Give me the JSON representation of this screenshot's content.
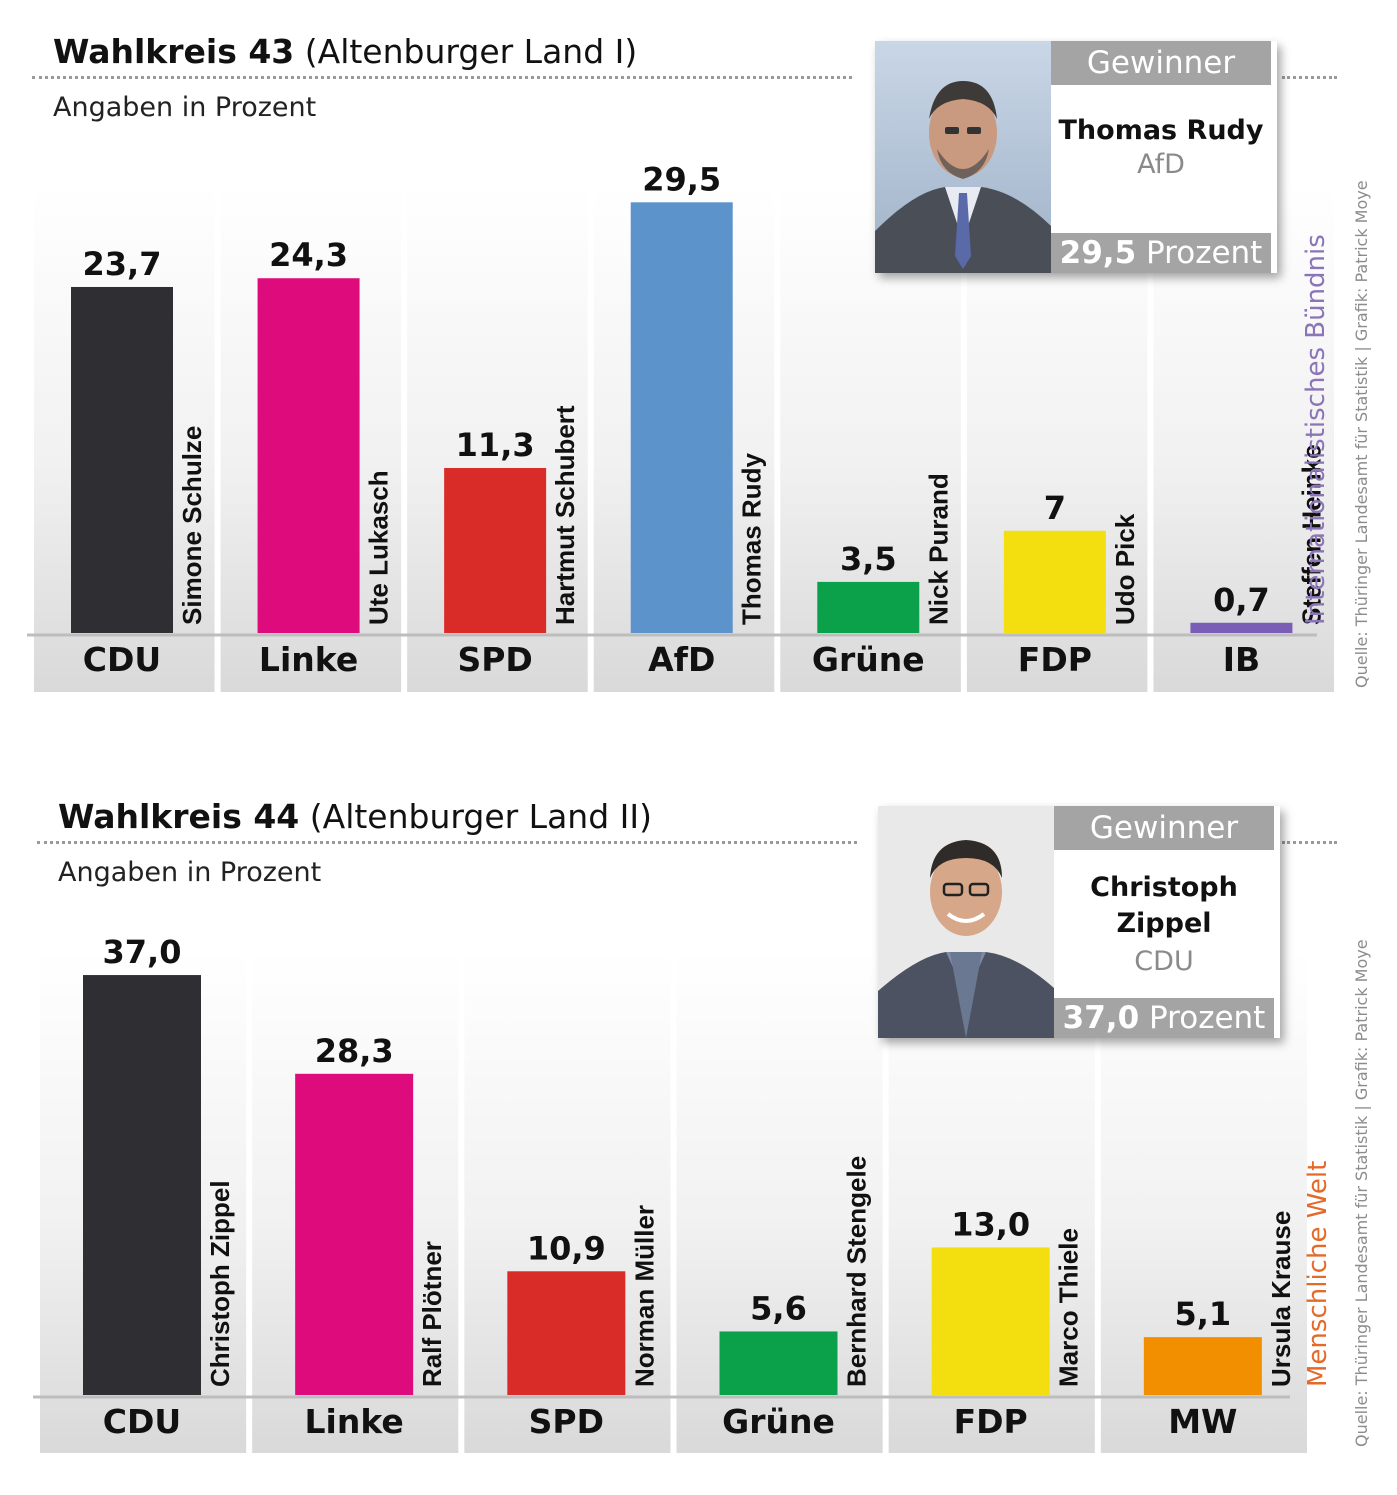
{
  "credit": "Quelle: Thüringer Landesamt für Statistik | Grafik: Patrick Moye",
  "wahlkreise": [
    {
      "title_bold": "Wahlkreis 43",
      "title_rest": " (Altenburger Land I)",
      "subtitle": "Angaben in Prozent",
      "winner": {
        "header": "Gewinner",
        "name": "Thomas Rudy",
        "party": "AfD",
        "value": "29,5",
        "unit": " Prozent"
      },
      "footnote": "Internationalistisches Bündnis",
      "footnote_color": "#8b74b8"
    },
    {
      "title_bold": "Wahlkreis 44",
      "title_rest": " (Altenburger Land II)",
      "subtitle": "Angaben in Prozent",
      "winner": {
        "header": "Gewinner",
        "name_line1": "Christoph",
        "name_line2": "Zippel",
        "party": "CDU",
        "value": "37,0",
        "unit": " Prozent"
      },
      "footnote": "Menschliche Welt",
      "footnote_color": "#e46a2a"
    }
  ],
  "chart_data": [
    {
      "type": "bar",
      "categories": [
        "CDU",
        "Linke",
        "SPD",
        "AfD",
        "Grüne",
        "FDP",
        "IB"
      ],
      "values": [
        23.7,
        24.3,
        11.3,
        29.5,
        3.5,
        7,
        0.7
      ],
      "value_labels": [
        "23,7",
        "24,3",
        "11,3",
        "29,5",
        "3,5",
        "7",
        "0,7"
      ],
      "candidates": [
        "Simone Schulze",
        "Ute Lukasch",
        "Hartmut Schubert",
        "Thomas Rudy",
        "Nick Purand",
        "Udo Pick",
        "Steffen Heinke"
      ],
      "colors": [
        "#2e2e33",
        "#dd0b7c",
        "#d92b27",
        "#5d93cb",
        "#0aa14a",
        "#f3df0f",
        "#7a5db5"
      ],
      "ylim": [
        0,
        30
      ]
    },
    {
      "type": "bar",
      "categories": [
        "CDU",
        "Linke",
        "SPD",
        "Grüne",
        "FDP",
        "MW"
      ],
      "values": [
        37.0,
        28.3,
        10.9,
        5.6,
        13.0,
        5.1
      ],
      "value_labels": [
        "37,0",
        "28,3",
        "10,9",
        "5,6",
        "13,0",
        "5,1"
      ],
      "candidates": [
        "Christoph Zippel",
        "Ralf Plötner",
        "Norman Müller",
        "Bernhard Stengele",
        "Marco Thiele",
        "Ursula Krause"
      ],
      "colors": [
        "#2e2e33",
        "#dd0b7c",
        "#d92b27",
        "#0aa14a",
        "#f3df0f",
        "#f18f00"
      ],
      "ylim": [
        0,
        37
      ]
    }
  ]
}
